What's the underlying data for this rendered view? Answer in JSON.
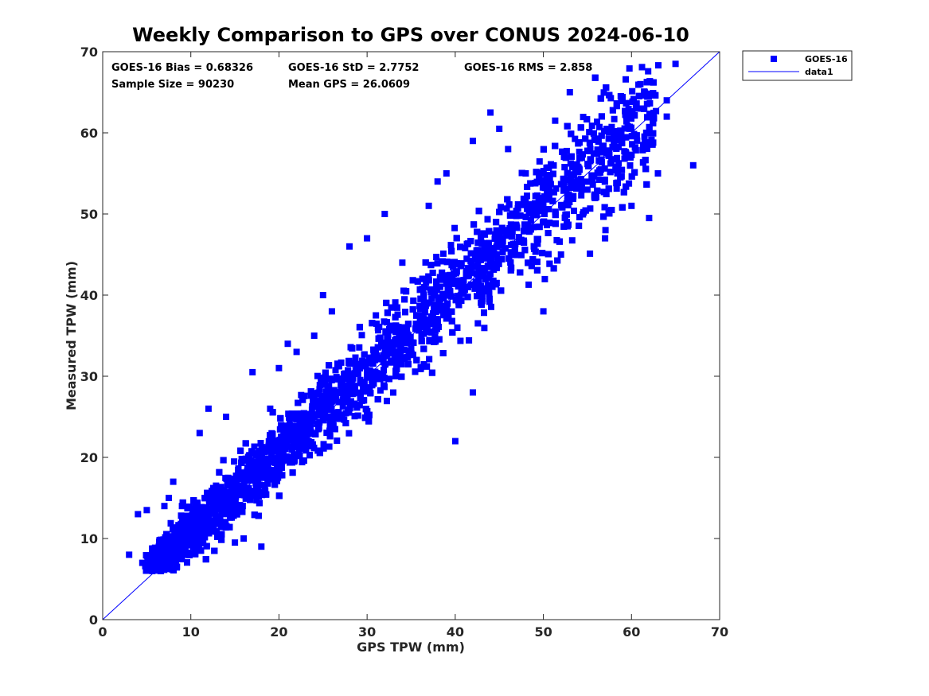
{
  "chart_data": {
    "type": "scatter",
    "title": "Weekly Comparison to GPS over CONUS 2024-06-10",
    "xlabel": "GPS TPW (mm)",
    "ylabel": "Measured TPW (mm)",
    "xlim": [
      0,
      70
    ],
    "ylim": [
      0,
      70
    ],
    "xticks": [
      "0",
      "10",
      "20",
      "30",
      "40",
      "50",
      "60",
      "70"
    ],
    "yticks": [
      "0",
      "10",
      "20",
      "30",
      "40",
      "50",
      "60",
      "70"
    ],
    "grid": false,
    "legend_position": "outside-top-right",
    "stats": {
      "bias": "GOES-16 Bias = 0.68326",
      "std": "GOES-16 StD = 2.7752",
      "rms": "GOES-16 RMS = 2.858",
      "sample_size": "Sample Size = 90230",
      "mean_gps": "Mean GPS = 26.0609"
    },
    "series": [
      {
        "name": "GOES-16",
        "marker": "square",
        "color": "#0000ff",
        "note": "Dense cloud of 90230 samples along 1:1 line; representative points below",
        "points": [
          [
            3,
            8
          ],
          [
            4,
            13
          ],
          [
            5,
            13.5
          ],
          [
            4.5,
            7
          ],
          [
            6,
            6.5
          ],
          [
            7,
            14
          ],
          [
            7.5,
            15
          ],
          [
            8,
            17
          ],
          [
            9,
            14
          ],
          [
            10,
            11
          ],
          [
            11,
            23
          ],
          [
            12,
            26
          ],
          [
            14,
            25
          ],
          [
            15,
            9.5
          ],
          [
            16,
            10
          ],
          [
            17,
            30.5
          ],
          [
            18,
            9
          ],
          [
            19,
            26
          ],
          [
            20,
            31
          ],
          [
            21,
            34
          ],
          [
            22,
            33
          ],
          [
            24,
            35
          ],
          [
            25,
            40
          ],
          [
            26,
            38
          ],
          [
            28,
            46
          ],
          [
            30,
            47
          ],
          [
            31,
            37.5
          ],
          [
            32,
            50
          ],
          [
            34,
            44
          ],
          [
            37,
            51
          ],
          [
            38,
            54
          ],
          [
            39,
            55
          ],
          [
            40,
            22
          ],
          [
            42,
            28
          ],
          [
            42,
            59
          ],
          [
            44,
            62.5
          ],
          [
            45,
            60.5
          ],
          [
            46,
            58
          ],
          [
            48,
            55
          ],
          [
            50,
            38
          ],
          [
            52,
            45
          ],
          [
            53,
            65
          ],
          [
            55,
            53
          ],
          [
            57,
            47
          ],
          [
            58,
            58.5
          ],
          [
            60,
            51
          ],
          [
            61,
            66
          ],
          [
            62,
            49.5
          ],
          [
            63,
            55
          ],
          [
            64,
            64
          ],
          [
            64,
            62
          ],
          [
            65,
            68.5
          ],
          [
            67,
            56
          ]
        ]
      },
      {
        "name": "data1",
        "marker": "line",
        "color": "#0000ff",
        "x": [
          0,
          70
        ],
        "y": [
          0,
          70
        ]
      }
    ]
  }
}
